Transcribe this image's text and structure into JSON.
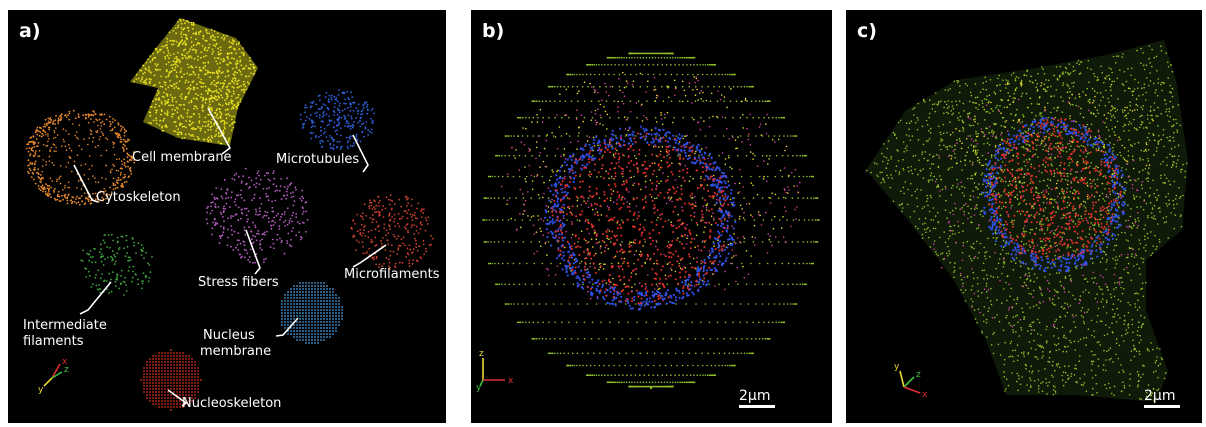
{
  "panels": {
    "a": {
      "label": "a)",
      "components": [
        {
          "name": "Cell membrane",
          "color": "#e8e020"
        },
        {
          "name": "Microtubules",
          "color": "#2e5fd8"
        },
        {
          "name": "Cytoskeleton",
          "color": "#e6892e"
        },
        {
          "name": "Stress fibers",
          "color": "#b45cc0"
        },
        {
          "name": "Microfilaments",
          "color": "#c8402e"
        },
        {
          "name": "Intermediate filaments",
          "color": "#3fa23f"
        },
        {
          "name": "Nucleus membrane",
          "color": "#4aa0e0"
        },
        {
          "name": "Nucleoskeleton",
          "color": "#d83020"
        }
      ],
      "labels": {
        "cell_membrane": "Cell membrane",
        "microtubules": "Microtubules",
        "cytoskeleton": "Cytoskeleton",
        "stress_fibers": "Stress fibers",
        "microfilaments": "Microfilaments",
        "intermediate_1": "Intermediate",
        "intermediate_2": "filaments",
        "nucleus_1": "Nucleus",
        "nucleus_2": "membrane",
        "nucleoskeleton": "Nucleoskeleton"
      },
      "axes": {
        "x": "x",
        "y": "y",
        "z": "z"
      }
    },
    "b": {
      "label": "b)",
      "scale_bar": "2μm",
      "axes": {
        "z": "z",
        "y": "y",
        "x": "x"
      }
    },
    "c": {
      "label": "c)",
      "scale_bar": "2μm",
      "axes": {
        "y": "y",
        "z": "z",
        "x": "x"
      }
    }
  },
  "colors": {
    "membrane_green": "#8fbf2a",
    "nucleus_blue": "#2f4fe0",
    "nucleus_red": "#e0302a",
    "accent_yellow": "#e8d830",
    "accent_magenta": "#d040a0"
  }
}
